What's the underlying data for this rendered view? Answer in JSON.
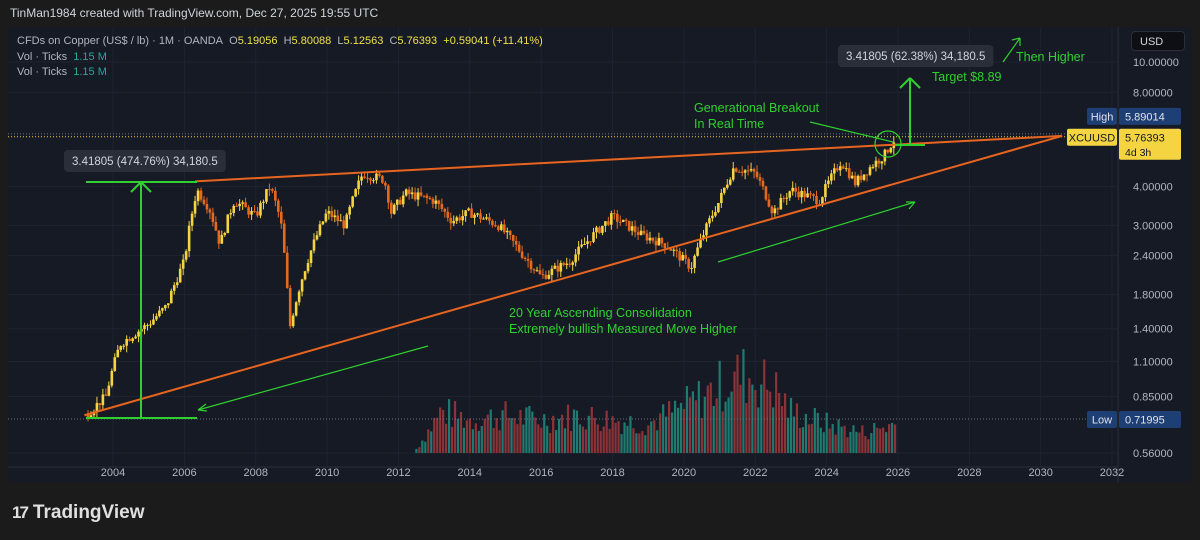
{
  "header": {
    "credit": "TinMan1984 created with TradingView.com, Dec 27, 2025 19:55 UTC"
  },
  "legend": {
    "symbol": "CFDs on Copper (US$ / lb) · 1M · OANDA",
    "o_label": "O",
    "o": "5.19056",
    "h_label": "H",
    "h": "5.80088",
    "l_label": "L",
    "l": "5.12563",
    "c_label": "C",
    "c": "5.76393",
    "change": "+0.59041 (+11.41%)",
    "vol1_label": "Vol · Ticks",
    "vol1": "1.15 M",
    "vol2_label": "Vol · Ticks",
    "vol2": "1.15 M"
  },
  "currency_button": "USD",
  "brand": {
    "mark": "17",
    "name": "TradingView"
  },
  "colors": {
    "up": "#f5d442",
    "down": "#e56a1c",
    "trend": "#e8651f",
    "annot": "#2fd12f",
    "vol_up": "#1f7a70",
    "vol_down": "#8c3338",
    "bg": "#161a25"
  },
  "chart_data": {
    "type": "candlestick",
    "title": "CFDs on Copper (US$ / lb) · 1M · OANDA",
    "yscale": "log",
    "ylim": [
      0.5,
      11.5
    ],
    "xlim": [
      2003.0,
      2032.8
    ],
    "y_ticks": [
      "10.00000",
      "8.00000",
      "4.00000",
      "3.00000",
      "2.40000",
      "1.80000",
      "1.40000",
      "1.10000",
      "0.85000",
      "0.56000"
    ],
    "x_ticks": [
      "2004",
      "2006",
      "2008",
      "2010",
      "2012",
      "2014",
      "2016",
      "2018",
      "2020",
      "2022",
      "2024",
      "2026",
      "2028",
      "2030",
      "2032"
    ],
    "price_path": [
      [
        2003.3,
        0.75
      ],
      [
        2003.8,
        0.85
      ],
      [
        2004.2,
        1.25
      ],
      [
        2004.6,
        1.35
      ],
      [
        2005.0,
        1.45
      ],
      [
        2005.5,
        1.65
      ],
      [
        2006.0,
        2.3
      ],
      [
        2006.35,
        3.9
      ],
      [
        2006.7,
        3.4
      ],
      [
        2007.0,
        2.6
      ],
      [
        2007.4,
        3.6
      ],
      [
        2008.0,
        3.2
      ],
      [
        2008.4,
        4.0
      ],
      [
        2008.7,
        3.1
      ],
      [
        2008.95,
        1.4
      ],
      [
        2009.5,
        2.4
      ],
      [
        2010.0,
        3.3
      ],
      [
        2010.5,
        3.0
      ],
      [
        2011.0,
        4.4
      ],
      [
        2011.6,
        4.2
      ],
      [
        2011.8,
        3.3
      ],
      [
        2012.2,
        3.8
      ],
      [
        2013.0,
        3.6
      ],
      [
        2013.5,
        3.1
      ],
      [
        2014.0,
        3.3
      ],
      [
        2014.8,
        3.0
      ],
      [
        2015.5,
        2.4
      ],
      [
        2016.0,
        2.05
      ],
      [
        2016.8,
        2.3
      ],
      [
        2017.2,
        2.6
      ],
      [
        2018.0,
        3.2
      ],
      [
        2018.8,
        2.8
      ],
      [
        2019.5,
        2.6
      ],
      [
        2020.2,
        2.2
      ],
      [
        2020.6,
        2.9
      ],
      [
        2021.0,
        3.6
      ],
      [
        2021.4,
        4.6
      ],
      [
        2022.0,
        4.4
      ],
      [
        2022.5,
        3.3
      ],
      [
        2023.0,
        3.9
      ],
      [
        2023.8,
        3.6
      ],
      [
        2024.4,
        4.8
      ],
      [
        2024.8,
        4.1
      ],
      [
        2025.3,
        4.7
      ],
      [
        2025.6,
        5.0
      ],
      [
        2025.95,
        5.76
      ]
    ],
    "volume_path": [
      [
        2012.5,
        0.05
      ],
      [
        2013.2,
        0.5
      ],
      [
        2014.0,
        0.4
      ],
      [
        2015.0,
        0.45
      ],
      [
        2016.0,
        0.4
      ],
      [
        2017.0,
        0.45
      ],
      [
        2018.0,
        0.4
      ],
      [
        2019.0,
        0.35
      ],
      [
        2020.2,
        0.6
      ],
      [
        2021.0,
        0.8
      ],
      [
        2021.6,
        0.95
      ],
      [
        2022.5,
        0.8
      ],
      [
        2023.0,
        0.5
      ],
      [
        2024.0,
        0.35
      ],
      [
        2025.0,
        0.25
      ],
      [
        2025.95,
        0.35
      ]
    ],
    "volume_max": 1.2,
    "price_labels": [
      {
        "label": "High",
        "value": "5.89014",
        "price": 5.89014
      },
      {
        "label": "XCUUSD",
        "value": "5.76393",
        "sub": "4d 3h",
        "price": 5.76393
      },
      {
        "label": "Low",
        "value": "0.71995",
        "price": 0.71995
      }
    ],
    "trendlines": [
      {
        "name": "upper-resistance",
        "from": [
          2006.3,
          4.15
        ],
        "to": [
          2030.6,
          5.8
        ]
      },
      {
        "name": "lower-support",
        "from": [
          2003.2,
          0.74
        ],
        "to": [
          2030.6,
          5.8
        ]
      }
    ],
    "annotations": {
      "measure_left": "3.41805 (474.76%) 34,180.5",
      "measure_right": "3.41805 (62.38%) 34,180.5",
      "breakout": [
        "Generational Breakout",
        "In Real Time"
      ],
      "target": "Target $8.89",
      "then_higher": "Then Higher",
      "consolidation": [
        "20 Year Ascending Consolidation",
        "Extremely bullish Measured Move Higher"
      ]
    }
  }
}
